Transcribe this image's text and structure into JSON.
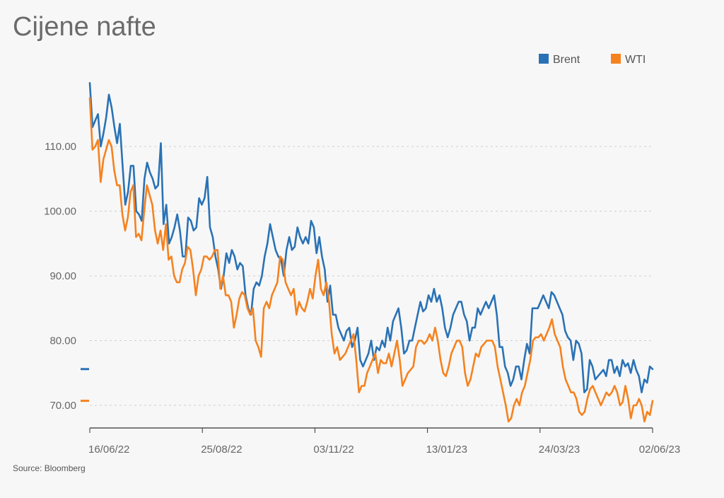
{
  "chart_data": {
    "type": "line",
    "title": "Cijene nafte",
    "source": "Source: Bloomberg",
    "xlabel": "",
    "ylabel": "",
    "x_tick_labels": [
      "16/06/22",
      "25/08/22",
      "03/11/22",
      "13/01/23",
      "24/03/23",
      "02/06/23"
    ],
    "y_tick_labels": [
      "70.00",
      "80.00",
      "90.00",
      "100.00",
      "110.00"
    ],
    "y_ticks": [
      70,
      80,
      90,
      100,
      110
    ],
    "ylim": [
      66.5,
      120
    ],
    "grid": "horizontal dashed",
    "legend": "top-right",
    "series": [
      {
        "name": "Brent",
        "color": "#2a72b5",
        "last_value": 75.6,
        "values": [
          119.8,
          113,
          114,
          115,
          110,
          112,
          114.5,
          118,
          116,
          113,
          110.5,
          113.5,
          107,
          101,
          103,
          107,
          107,
          100,
          99.5,
          98.5,
          105,
          107.5,
          106,
          105,
          103.5,
          104,
          110.5,
          98,
          101,
          95,
          96,
          97.5,
          99.5,
          97,
          93,
          93,
          99,
          98.5,
          97,
          97.5,
          102,
          101,
          102,
          105.3,
          97.5,
          96,
          93,
          91,
          88,
          90,
          93.5,
          92,
          94,
          93,
          91,
          92,
          91.5,
          87,
          85,
          84,
          88,
          89,
          88.5,
          90,
          93,
          95,
          98,
          96,
          94,
          93,
          92.5,
          90,
          94,
          96,
          94,
          94.5,
          97.5,
          96,
          95,
          96,
          95,
          98.5,
          97.5,
          93.5,
          96,
          93,
          91,
          86,
          88.5,
          84,
          84,
          82,
          81,
          80,
          81.5,
          82,
          79,
          80,
          82,
          77,
          76,
          77,
          78,
          80,
          77,
          79,
          78.5,
          80,
          79,
          82,
          80,
          83,
          84,
          85,
          82,
          78,
          78.5,
          80,
          80,
          82,
          84,
          86,
          84.5,
          85,
          87,
          86,
          88,
          86,
          87,
          85,
          82,
          80.5,
          82,
          84,
          85,
          86,
          86,
          84,
          83,
          80,
          82,
          82,
          85,
          84,
          85,
          86,
          85,
          86,
          87,
          84,
          79,
          79,
          76,
          75,
          73,
          74,
          76,
          76,
          74,
          77,
          79.5,
          78,
          85,
          85,
          85,
          86,
          87,
          86,
          85,
          87.5,
          87,
          86,
          85,
          84,
          81.5,
          80.5,
          80,
          77,
          80,
          79.5,
          78,
          72,
          72.5,
          77,
          76,
          74,
          74.5,
          75,
          75.5,
          74.5,
          77,
          77,
          75,
          76,
          74.5,
          77,
          76,
          76.5,
          75,
          77,
          75.5,
          74.5,
          72,
          74,
          73.5,
          76,
          75.6
        ]
      },
      {
        "name": "WTI",
        "color": "#f5821f",
        "last_value": 70.7,
        "values": [
          117.5,
          109.5,
          110,
          111,
          104.5,
          108,
          109.5,
          111,
          110,
          106.3,
          104,
          104,
          99.5,
          97,
          99,
          103,
          104,
          96,
          96.5,
          95.5,
          100,
          104,
          102.5,
          101,
          97,
          95,
          97,
          94,
          98,
          92.5,
          93,
          90,
          89,
          89,
          91,
          92,
          94.5,
          94,
          91,
          87,
          90,
          91,
          93,
          93,
          92.5,
          93,
          94,
          94,
          88,
          90,
          87,
          87,
          86,
          82,
          84,
          86.5,
          87.5,
          87,
          85,
          84,
          85,
          80,
          79,
          77.5,
          85,
          86,
          85,
          87,
          88,
          89,
          93,
          92.5,
          89,
          88,
          87,
          88,
          84,
          86,
          85,
          84.5,
          86,
          88,
          86.5,
          90,
          92.5,
          88,
          87,
          89,
          86,
          81,
          78,
          79,
          77,
          77.5,
          78,
          79,
          80,
          81,
          77,
          72,
          73,
          73,
          75,
          76,
          77,
          78,
          75,
          77,
          76.5,
          76.5,
          78,
          76,
          78,
          80,
          77,
          73,
          74,
          75,
          75.5,
          76,
          79,
          80,
          80,
          79.5,
          80,
          81,
          80,
          82,
          80,
          77,
          75,
          74.5,
          76,
          78,
          79,
          80,
          80,
          79,
          75,
          73,
          74,
          76,
          78,
          77.5,
          79,
          79.5,
          80,
          80,
          80,
          79,
          76,
          74,
          72,
          70,
          67.5,
          68,
          70,
          71,
          70,
          72,
          73,
          75,
          77,
          80,
          80.5,
          80.5,
          81,
          80,
          81,
          82,
          83.3,
          81,
          80,
          79,
          76,
          74,
          73,
          72,
          72,
          71,
          69,
          68.5,
          69,
          71,
          72.5,
          73,
          72,
          71,
          70,
          71,
          72,
          71.5,
          72,
          73,
          72,
          70,
          70.5,
          73,
          71,
          68,
          70,
          70,
          71,
          70,
          67.5,
          69,
          68.5,
          70.7
        ]
      }
    ]
  }
}
